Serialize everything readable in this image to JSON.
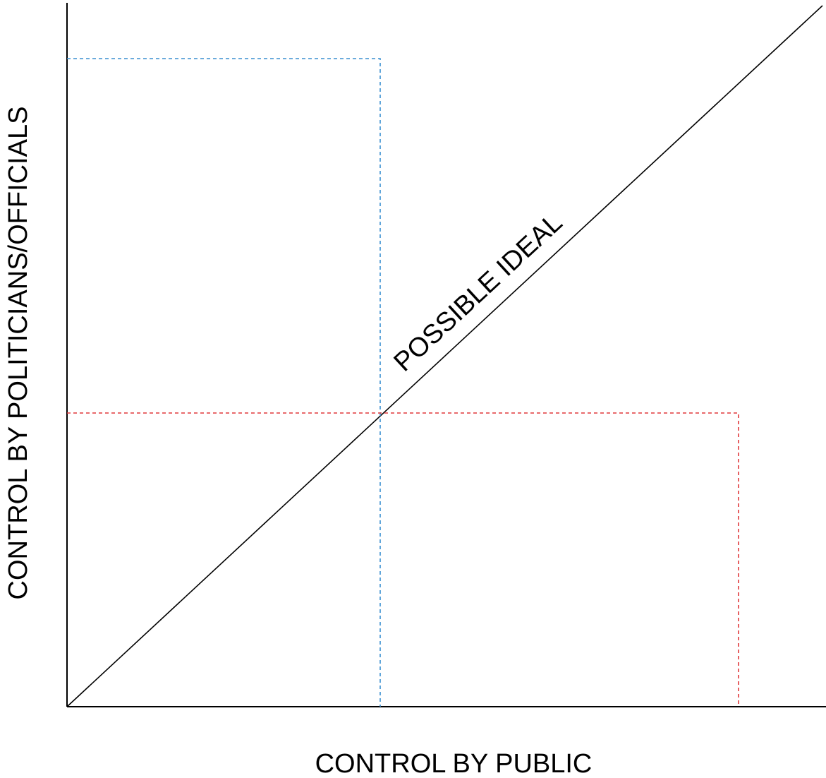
{
  "diagram": {
    "x_axis_label": "CONTROL BY PUBLIC",
    "y_axis_label": "CONTROL BY POLITICIANS/OFFICIALS",
    "diagonal_label": "POSSIBLE IDEAL",
    "colors": {
      "axes": "#000000",
      "blue_region": "#3a8fd0",
      "red_region": "#e0393c"
    }
  }
}
